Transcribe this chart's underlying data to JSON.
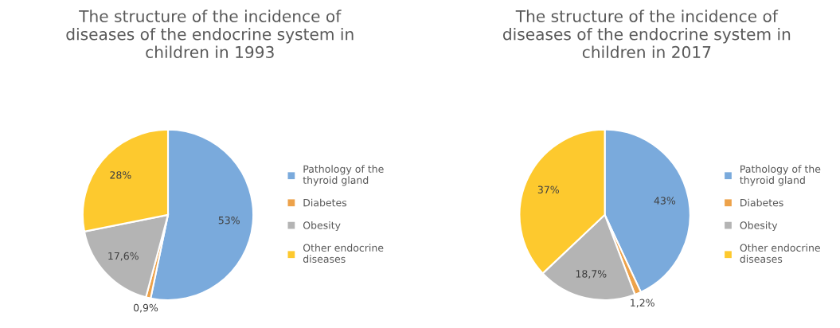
{
  "chart_data": [
    {
      "type": "pie",
      "title": "The structure of the incidence of\ndiseases of the endocrine system in\nchildren in 1993",
      "categories": [
        "Pathology of the\nthyroid gland",
        "Diabetes",
        "Obesity",
        "Other endocrine\ndiseases"
      ],
      "values": [
        53,
        0.9,
        17.6,
        28
      ],
      "value_labels": [
        "53%",
        "0,9%",
        "17,6%",
        "28%"
      ],
      "colors": [
        "#7aaadc",
        "#eda24a",
        "#b4b4b4",
        "#fdc92e"
      ],
      "legend": "right"
    },
    {
      "type": "pie",
      "title": "The structure of the incidence of\ndiseases of the endocrine system in\nchildren in 2017",
      "categories": [
        "Pathology of the\nthyroid gland",
        "Diabetes",
        "Obesity",
        "Other endocrine\ndiseases"
      ],
      "values": [
        43,
        1.2,
        18.7,
        37
      ],
      "value_labels": [
        "43%",
        "1,2%",
        "18,7%",
        "37%"
      ],
      "colors": [
        "#7aaadc",
        "#eda24a",
        "#b4b4b4",
        "#fdc92e"
      ],
      "legend": "right"
    }
  ]
}
